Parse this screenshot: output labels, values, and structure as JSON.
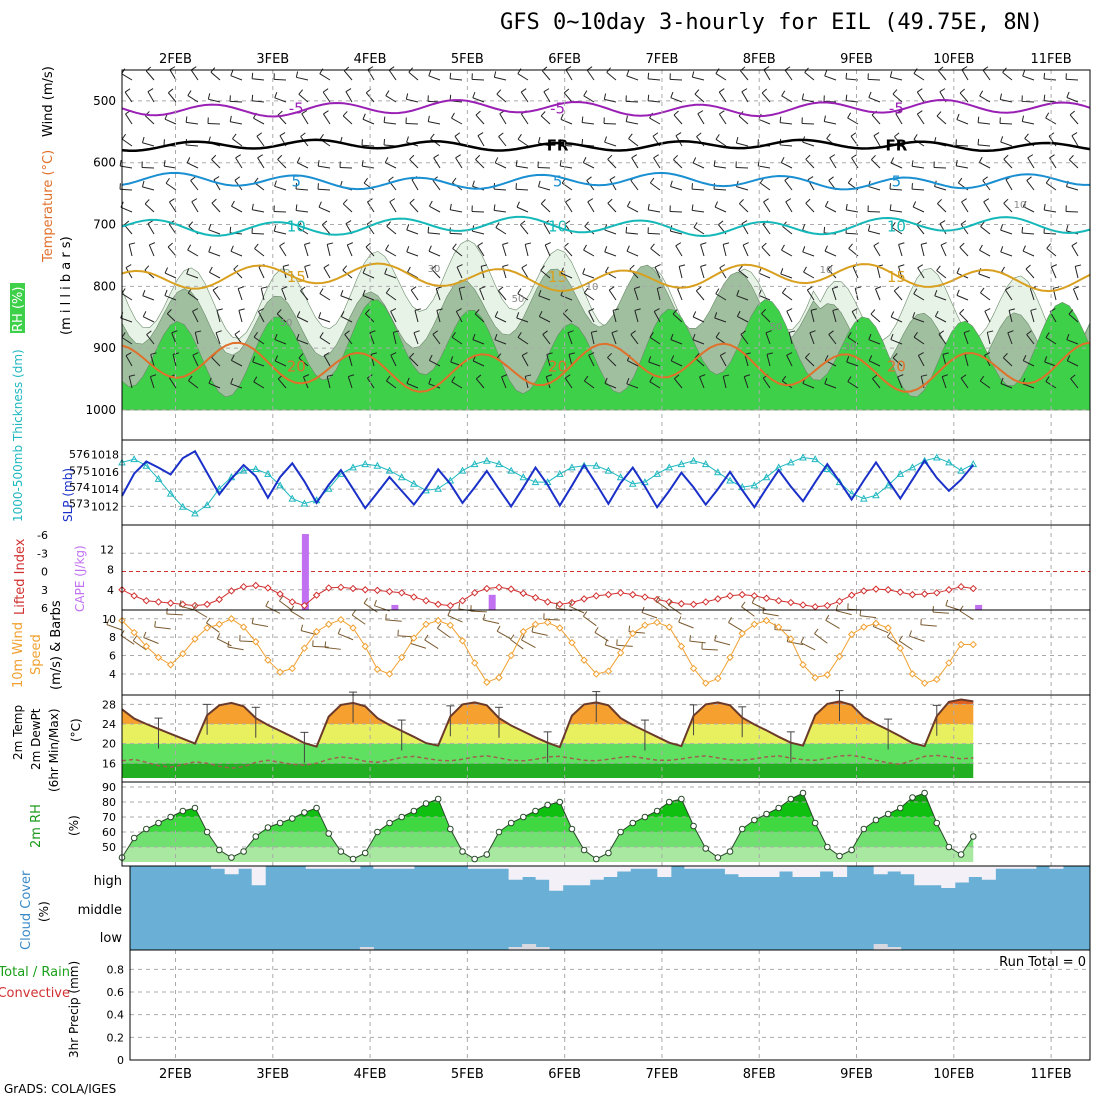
{
  "title": "GFS 0~10day 3-hourly for EIL (49.75E, 8N)",
  "credit": "GrADS: COLA/IGES",
  "colors": {
    "rh_green": "#3fd04a",
    "rh_mid": "#9fbf9f",
    "rh_light": "#e8f3e8",
    "temp_purple": "#9a20b5",
    "temp_black": "#000000",
    "temp_blue": "#1a8fd1",
    "temp_teal": "#14b8b8",
    "temp_gold": "#d9a020",
    "temp_orange": "#e0702a",
    "temp_magenta": "#d81e78",
    "slp": "#1a30c8",
    "thickness": "#20b8c0",
    "lifted": "#d23030",
    "cape": "#c070f0",
    "wind_speed": "#f0a030",
    "cloud_blue": "#6aafd6",
    "cloud_white": "#f4f0f8"
  },
  "time_axis": {
    "labels": [
      "2FEB",
      "3FEB",
      "4FEB",
      "5FEB",
      "6FEB",
      "7FEB",
      "8FEB",
      "9FEB",
      "10FEB",
      "11FEB"
    ]
  },
  "chart_data": [
    {
      "id": "upper",
      "type": "contour",
      "ylabel_parts": [
        "Wind (m/s)",
        "Temperature (°C)",
        "RH (%)",
        "(m i l l i b a r s)"
      ],
      "y_ticks": [
        500,
        600,
        700,
        800,
        900,
        1000
      ],
      "ylim": [
        450,
        1000
      ],
      "isotherms": [
        {
          "label": "-5",
          "level": 512,
          "color": "purple"
        },
        {
          "label": "FR",
          "level": 572,
          "color": "black"
        },
        {
          "label": "5",
          "level": 630,
          "color": "blue"
        },
        {
          "label": "10",
          "level": 703,
          "color": "teal"
        },
        {
          "label": "15",
          "level": 785,
          "color": "gold"
        },
        {
          "label": "20",
          "level": 930,
          "color": "orange"
        }
      ],
      "rh_labels": [
        "30",
        "50",
        "10",
        "50",
        "10",
        "50",
        "30",
        "10"
      ]
    },
    {
      "id": "slp",
      "type": "line",
      "ylabel_left": "1000-500mb Thickness (dm)",
      "ylabel_right": "SLP (mb)",
      "left_ticks": [
        573,
        574,
        575,
        576
      ],
      "right_ticks": [
        1012,
        1014,
        1016,
        1018
      ],
      "slp": [
        1013.2,
        1015.8,
        1017.2,
        1016.5,
        1015.7,
        1017.6,
        1018.4,
        1015.9,
        1013.4,
        1015.2,
        1016.8,
        1015.5,
        1013.0,
        1015.4,
        1017.0,
        1014.9,
        1012.4,
        1014.5,
        1016.2,
        1014.0,
        1011.8,
        1013.6,
        1015.4,
        1013.8,
        1012.2,
        1014.1,
        1016.3,
        1014.6,
        1012.4,
        1014.2,
        1016.1,
        1014.0,
        1012.0,
        1014.2,
        1016.5,
        1014.5,
        1012.1,
        1014.4,
        1016.8,
        1014.6,
        1012.3,
        1014.7,
        1016.5,
        1014.3,
        1011.9,
        1013.8,
        1015.9,
        1014.2,
        1012.2,
        1014.0,
        1016.0,
        1013.9,
        1011.9,
        1014.1,
        1016.2,
        1014.3,
        1012.6,
        1014.8,
        1016.9,
        1014.9,
        1012.8,
        1015.0,
        1017.1,
        1015.0,
        1012.9,
        1015.1,
        1017.3,
        1015.3,
        1013.8,
        1015.1,
        1016.8
      ],
      "thickness": [
        575.5,
        575.7,
        575.3,
        574.5,
        573.6,
        572.8,
        572.4,
        572.9,
        573.9,
        574.6,
        575.0,
        575.1,
        574.8,
        574.1,
        573.3,
        573.0,
        573.2,
        573.9,
        574.8,
        575.2,
        575.4,
        575.3,
        575.0,
        574.6,
        574.2,
        573.8,
        573.9,
        574.4,
        575.0,
        575.4,
        575.6,
        575.4,
        575.0,
        574.6,
        574.3,
        574.3,
        574.8,
        575.2,
        575.3,
        575.3,
        575.0,
        574.6,
        574.2,
        574.3,
        574.8,
        575.2,
        575.4,
        575.6,
        575.4,
        574.9,
        574.4,
        574.0,
        574.1,
        574.6,
        575.2,
        575.5,
        575.8,
        575.7,
        575.1,
        574.3,
        573.6,
        573.3,
        573.5,
        574.1,
        574.8,
        575.2,
        575.6,
        575.8,
        575.5,
        575.0,
        575.4
      ]
    },
    {
      "id": "cape",
      "type": "line+bar",
      "ylabel_left": "Lifted Index",
      "ylabel_right": "CAPE (J/kg)",
      "left_ticks": [
        "-6",
        "-3",
        "0",
        "3",
        "6"
      ],
      "right_ticks": [
        4,
        8,
        12
      ],
      "lifted_index": [
        3.0,
        4.0,
        4.8,
        5.0,
        5.2,
        5.4,
        5.6,
        5.4,
        4.6,
        3.2,
        2.5,
        2.3,
        2.7,
        3.7,
        5.0,
        5.6,
        3.9,
        2.7,
        2.6,
        2.8,
        3.0,
        3.1,
        3.3,
        3.5,
        4.2,
        4.8,
        5.4,
        5.6,
        4.8,
        3.5,
        2.8,
        2.6,
        2.9,
        3.6,
        4.3,
        5.0,
        5.4,
        5.1,
        4.5,
        4.0,
        3.8,
        3.5,
        3.8,
        4.2,
        4.6,
        5.0,
        5.3,
        5.4,
        5.0,
        4.5,
        4.0,
        3.8,
        4.0,
        4.4,
        4.8,
        5.1,
        5.5,
        5.8,
        5.6,
        4.9,
        3.9,
        3.2,
        2.9,
        3.0,
        3.4,
        3.8,
        3.7,
        3.5,
        3.0,
        2.5,
        2.8
      ],
      "cape_bars": [
        {
          "day": 1.33,
          "value": 15
        },
        {
          "day": 2.25,
          "value": 1
        },
        {
          "day": 3.25,
          "value": 3
        },
        {
          "day": 8.25,
          "value": 1
        }
      ]
    },
    {
      "id": "wind10m",
      "type": "line",
      "ylabel": "10m Wind Speed (m/s) & Barbs",
      "y_ticks": [
        4,
        6,
        8,
        10
      ],
      "speed": [
        9.8,
        8.5,
        7.0,
        5.8,
        5.0,
        6.2,
        7.8,
        9.0,
        9.4,
        10.0,
        9.1,
        7.5,
        5.5,
        4.2,
        4.6,
        6.8,
        8.6,
        9.4,
        9.9,
        9.0,
        7.0,
        4.5,
        4.0,
        5.8,
        7.9,
        9.4,
        9.8,
        9.3,
        7.6,
        5.2,
        3.1,
        3.6,
        6.0,
        8.6,
        9.4,
        9.6,
        9.0,
        7.4,
        5.5,
        4.0,
        4.3,
        6.3,
        8.4,
        9.3,
        9.6,
        9.1,
        7.0,
        4.6,
        3.0,
        3.5,
        5.8,
        8.4,
        9.4,
        9.8,
        9.1,
        7.8,
        5.0,
        3.6,
        3.9,
        5.9,
        8.3,
        9.1,
        9.5,
        9.0,
        6.8,
        4.0,
        3.0,
        3.4,
        5.2,
        7.2,
        7.2
      ]
    },
    {
      "id": "temp2m",
      "type": "area",
      "ylabel": "2m Temp 2m DewPt (6hr Min/Max) (°C)",
      "y_ticks": [
        16,
        20,
        24,
        28
      ],
      "temp": [
        27.0,
        25.1,
        24.0,
        23.0,
        22.0,
        21.0,
        20.0,
        25.8,
        27.8,
        28.3,
        27.6,
        25.2,
        23.8,
        22.6,
        21.4,
        20.1,
        19.4,
        25.5,
        27.9,
        28.3,
        27.6,
        25.2,
        23.8,
        22.6,
        21.4,
        20.1,
        19.6,
        25.5,
        28.0,
        28.4,
        27.8,
        25.2,
        23.7,
        22.5,
        21.3,
        20.2,
        19.3,
        25.7,
        28.0,
        28.4,
        27.8,
        25.2,
        23.8,
        22.6,
        21.4,
        20.2,
        19.5,
        25.7,
        28.0,
        28.4,
        27.8,
        25.3,
        23.9,
        22.7,
        21.4,
        20.2,
        19.6,
        25.8,
        28.1,
        28.6,
        27.9,
        25.4,
        24.0,
        22.8,
        21.5,
        20.1,
        19.5,
        25.6,
        28.5,
        29.0,
        28.6
      ],
      "dewpoint": [
        16.5,
        16.8,
        16.2,
        15.5,
        15.2,
        15.7,
        16.3,
        16.0,
        15.4,
        15.0,
        15.3,
        16.2,
        16.6,
        16.2,
        15.8,
        15.6,
        16.0,
        16.8,
        17.3,
        17.0,
        16.4,
        16.2,
        16.6,
        17.2,
        17.4,
        17.0,
        16.6,
        16.5,
        16.8,
        17.3,
        17.5,
        17.1,
        16.6,
        16.5,
        16.8,
        17.3,
        17.4,
        17.0,
        16.6,
        16.5,
        16.8,
        17.2,
        17.4,
        17.0,
        16.6,
        16.6,
        16.9,
        17.3,
        17.5,
        17.1,
        16.7,
        16.6,
        16.9,
        17.3,
        17.5,
        17.1,
        16.7,
        16.6,
        17.0,
        17.5,
        17.6,
        17.2,
        16.6,
        16.1,
        15.8,
        16.6,
        17.4,
        17.6,
        17.3,
        16.9,
        17.1
      ]
    },
    {
      "id": "rh2m",
      "type": "area",
      "ylabel": "2m RH (%)",
      "y_ticks": [
        50,
        60,
        70,
        80,
        90
      ],
      "rh": [
        43,
        56,
        62,
        66,
        70,
        74,
        76,
        60,
        48,
        43,
        47,
        57,
        63,
        66,
        69,
        73,
        76,
        59,
        47,
        42,
        46,
        60,
        66,
        70,
        74,
        79,
        82,
        62,
        47,
        42,
        45,
        60,
        66,
        70,
        74,
        78,
        80,
        62,
        48,
        42,
        46,
        60,
        66,
        70,
        74,
        80,
        82,
        64,
        49,
        43,
        47,
        62,
        68,
        72,
        76,
        82,
        86,
        66,
        50,
        44,
        48,
        62,
        68,
        72,
        76,
        83,
        86,
        66,
        50,
        45,
        57
      ]
    },
    {
      "id": "cloud",
      "type": "bar",
      "ylabel": "Cloud Cover (%)",
      "levels": [
        "high",
        "middle",
        "low"
      ],
      "high_pct": [
        0,
        0,
        0,
        0,
        0,
        0,
        5,
        15,
        5,
        35,
        0,
        0,
        0,
        5,
        5,
        5,
        5,
        0,
        5,
        5,
        5,
        0,
        0,
        0,
        0,
        5,
        5,
        5,
        25,
        20,
        25,
        45,
        35,
        35,
        25,
        20,
        10,
        5,
        5,
        20,
        0,
        5,
        5,
        5,
        15,
        20,
        20,
        20,
        10,
        20,
        20,
        10,
        20,
        0,
        0,
        15,
        10,
        15,
        35,
        35,
        40,
        30,
        20,
        25,
        5,
        5,
        5,
        0,
        5,
        0,
        0
      ],
      "low_pct": [
        0,
        0,
        0,
        0,
        0,
        0,
        0,
        0,
        0,
        0,
        0,
        0,
        0,
        0,
        0,
        0,
        0,
        5,
        0,
        0,
        0,
        0,
        0,
        0,
        0,
        0,
        0,
        0,
        5,
        10,
        5,
        0,
        0,
        0,
        0,
        0,
        0,
        0,
        0,
        0,
        0,
        0,
        0,
        0,
        0,
        0,
        0,
        0,
        0,
        0,
        0,
        0,
        0,
        0,
        0,
        10,
        5,
        0,
        0,
        0,
        0,
        0,
        0,
        0,
        0,
        0,
        0,
        0,
        0,
        0,
        0
      ]
    },
    {
      "id": "precip",
      "type": "bar",
      "ylabel": "3hr Precip (mm)",
      "legend_left": "Total / Rain",
      "legend_right": "Convective",
      "y_ticks": [
        "0",
        "0.2",
        "0.4",
        "0.6",
        "0.8"
      ],
      "ylim": [
        0,
        1
      ],
      "run_total": "Run Total = 0",
      "values": []
    }
  ]
}
